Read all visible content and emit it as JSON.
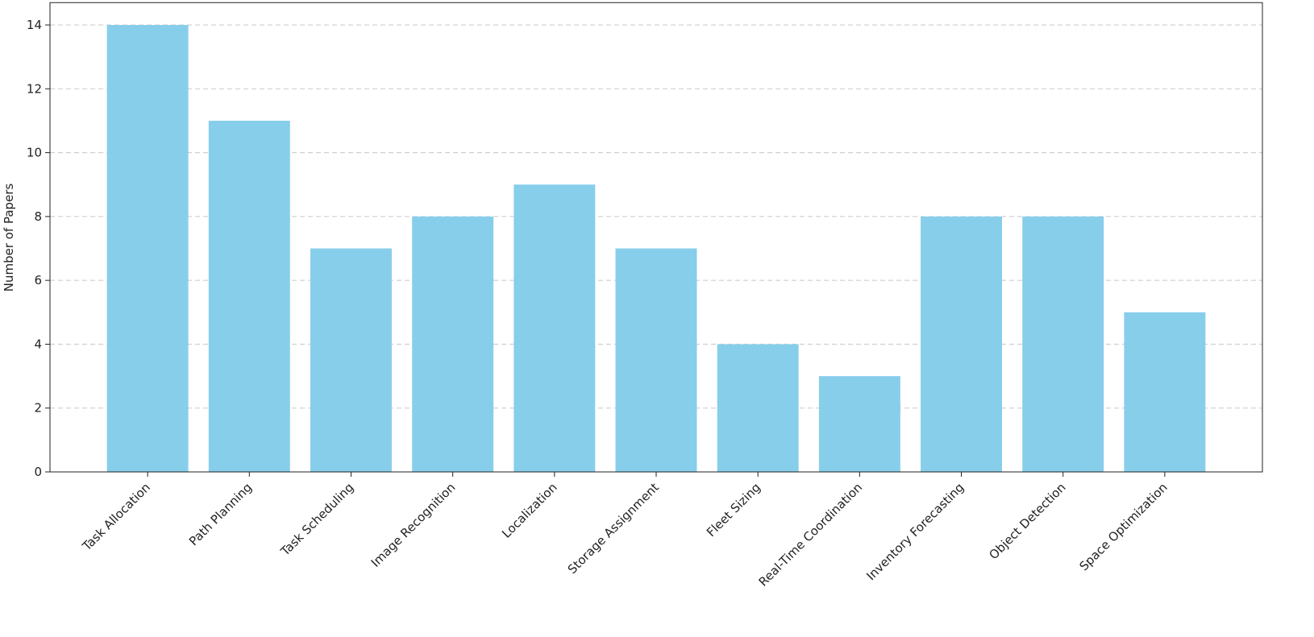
{
  "chart_data": {
    "type": "bar",
    "y_label": "Number of Papers",
    "categories": [
      "Task Allocation",
      "Path Planning",
      "Task Scheduling",
      "Image Recognition",
      "Localization",
      "Storage Assignment",
      "Fleet Sizing",
      "Real-Time Coordination",
      "Inventory Forecasting",
      "Object Detection",
      "Space Optimization"
    ],
    "values": [
      14,
      11,
      7,
      8,
      9,
      7,
      4,
      3,
      8,
      8,
      5
    ],
    "color": "#87ceeb",
    "ylim": [
      0,
      14.7
    ],
    "yticks": [
      0,
      2,
      4,
      6,
      8,
      10,
      12,
      14
    ],
    "grid": true
  }
}
